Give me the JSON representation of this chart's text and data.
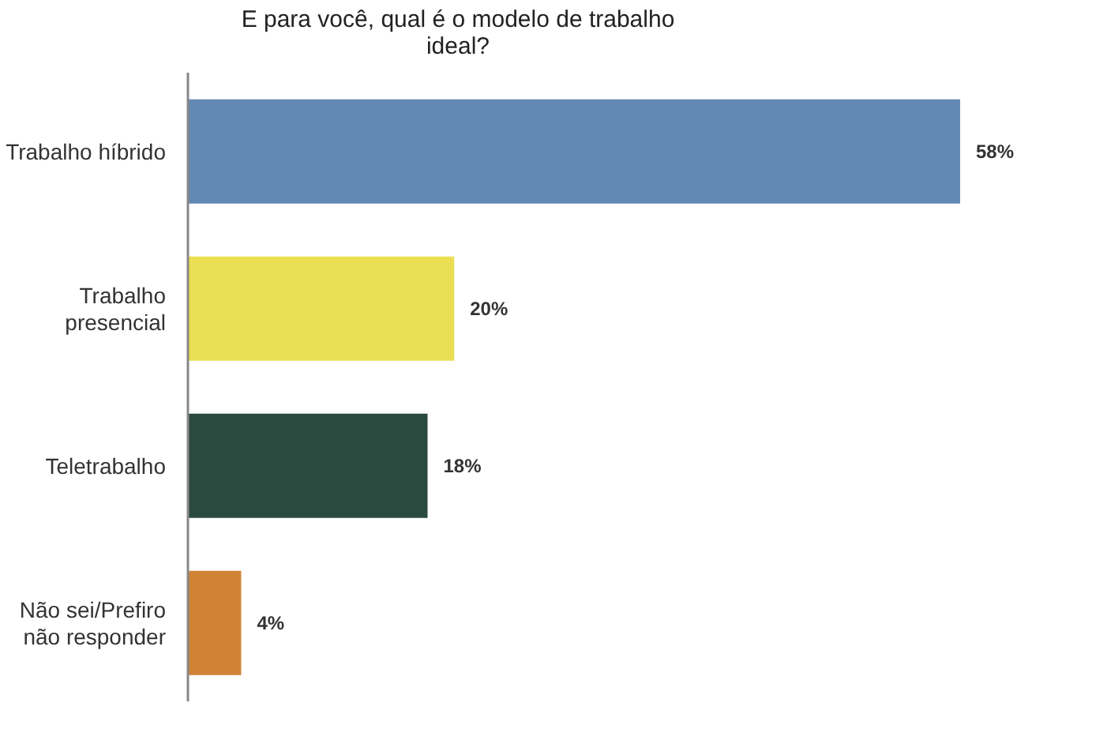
{
  "chart_data": {
    "type": "bar",
    "orientation": "horizontal",
    "title": "E para você, qual é o modelo de trabalho ideal?",
    "categories": [
      "Trabalho híbrido",
      "Trabalho presencial",
      "Teletrabalho",
      "Não sei/Prefiro não responder"
    ],
    "values": [
      58,
      20,
      18,
      4
    ],
    "colors": [
      "#6389b3",
      "#eadf52",
      "#2b4a3f",
      "#d08235"
    ],
    "value_labels": [
      "58%",
      "20%",
      "18%",
      "4%"
    ]
  }
}
